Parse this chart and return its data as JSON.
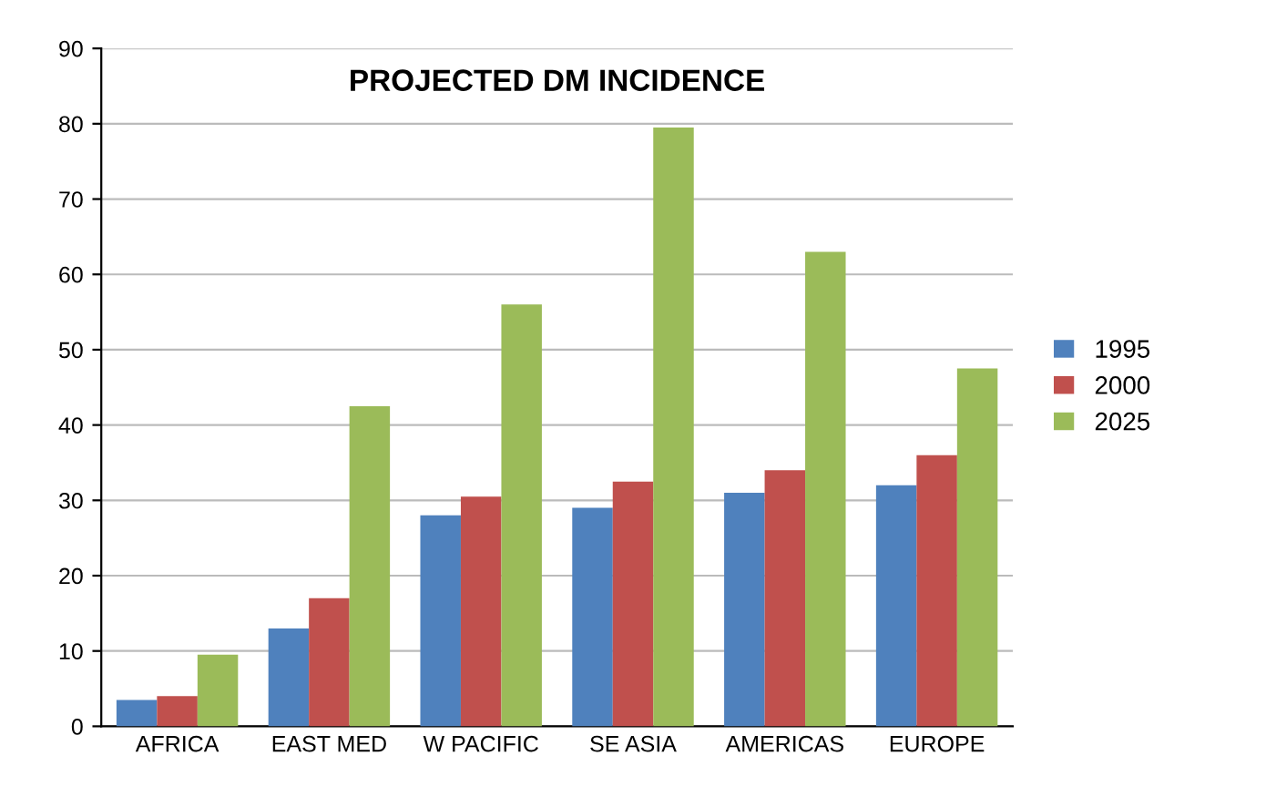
{
  "chart_data": {
    "type": "bar",
    "title": "PROJECTED DM INCIDENCE",
    "categories": [
      "AFRICA",
      "EAST MED",
      "W PACIFIC",
      "SE ASIA",
      "AMERICAS",
      "EUROPE"
    ],
    "series": [
      {
        "name": "1995",
        "color": "#4f81bd",
        "values": [
          3.5,
          13,
          28,
          29,
          31,
          32
        ]
      },
      {
        "name": "2000",
        "color": "#c0504d",
        "values": [
          4,
          17,
          30.5,
          32.5,
          34,
          36
        ]
      },
      {
        "name": "2025",
        "color": "#9bbb59",
        "values": [
          9.5,
          42.5,
          56,
          79.5,
          63,
          47.5
        ]
      }
    ],
    "ylim": [
      0,
      90
    ],
    "yticks": [
      0,
      10,
      20,
      30,
      40,
      50,
      60,
      70,
      80,
      90
    ],
    "grid": "y",
    "legend": "right"
  }
}
